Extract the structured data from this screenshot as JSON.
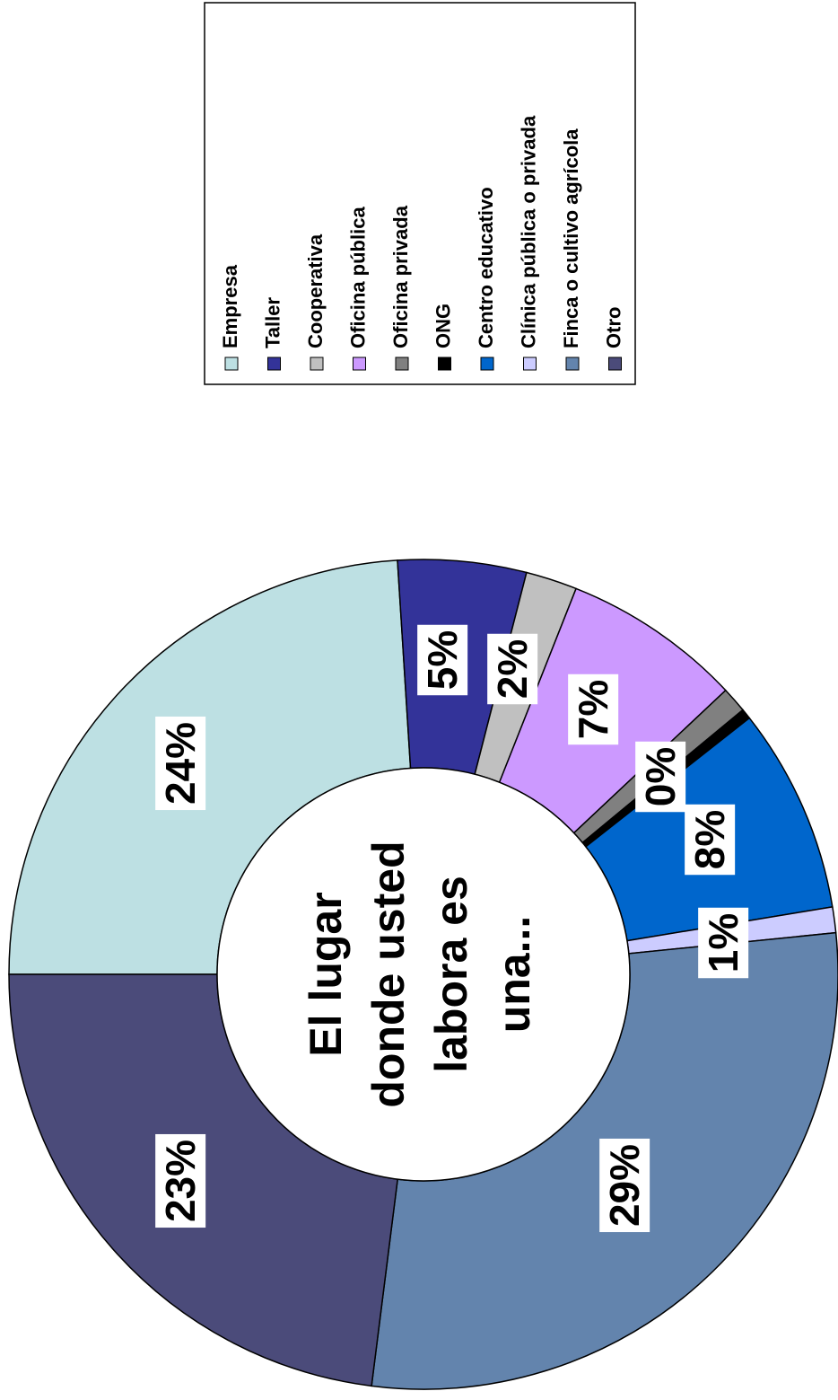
{
  "chart_data": {
    "type": "donut",
    "center_text": [
      "El lugar",
      "donde usted",
      "labora es",
      "una..."
    ],
    "categories": [
      "Empresa",
      "Taller",
      "Cooperativa",
      "Oficina pública",
      "Oficina privada",
      "ONG",
      "Centro educativo",
      "Clínica pública o privada",
      "Finca o cultivo agrícola",
      "Otro"
    ],
    "values": [
      24,
      5,
      2,
      7,
      1,
      0.4,
      8,
      1,
      28.6,
      23
    ],
    "value_labels": [
      "24%",
      "5%",
      "2%",
      "7%",
      null,
      "0%",
      "8%",
      "1%",
      "29%",
      "23%"
    ],
    "colors": [
      "#bde0e3",
      "#333399",
      "#c0c0c0",
      "#cc99ff",
      "#808080",
      "#000000",
      "#0066cc",
      "#ccccff",
      "#6384ad",
      "#4b4b7a"
    ],
    "legend": "right"
  }
}
